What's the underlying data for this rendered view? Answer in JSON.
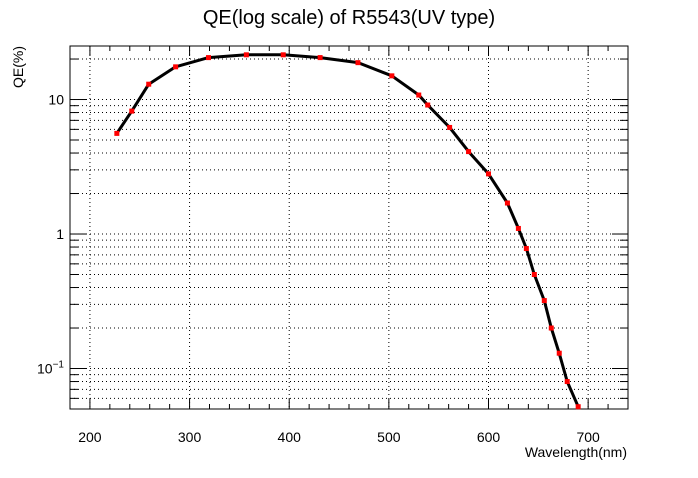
{
  "chart_data": {
    "type": "line",
    "title": "QE(log scale) of R5543(UV type)",
    "xlabel": "Wavelength(nm)",
    "ylabel": "QE(%)",
    "xlim": [
      180,
      740
    ],
    "ylim": [
      0.05,
      25
    ],
    "y_scale": "log",
    "grid": true,
    "x_ticks": [
      {
        "value": 200,
        "label": "200"
      },
      {
        "value": 300,
        "label": "300"
      },
      {
        "value": 400,
        "label": "400"
      },
      {
        "value": 500,
        "label": "500"
      },
      {
        "value": 600,
        "label": "600"
      },
      {
        "value": 700,
        "label": "700"
      }
    ],
    "y_ticks": [
      {
        "value": 0.1,
        "label": "10",
        "sup": "−1"
      },
      {
        "value": 1,
        "label": "1",
        "sup": ""
      },
      {
        "value": 10,
        "label": "10",
        "sup": ""
      }
    ],
    "line_color": "#000000",
    "marker_color": "#ff0000",
    "series": [
      {
        "x": [
          227,
          242,
          259,
          286,
          319,
          357,
          394,
          431,
          469,
          503,
          530,
          539,
          561,
          580,
          600,
          619,
          630,
          638,
          646,
          656,
          663,
          671,
          679,
          690
        ],
        "y": [
          5.6,
          8.2,
          13,
          17.5,
          20.5,
          21.5,
          21.5,
          20.5,
          18.8,
          15,
          10.8,
          9.1,
          6.2,
          4.1,
          2.8,
          1.7,
          1.1,
          0.78,
          0.5,
          0.32,
          0.2,
          0.13,
          0.08,
          0.052
        ]
      }
    ]
  }
}
